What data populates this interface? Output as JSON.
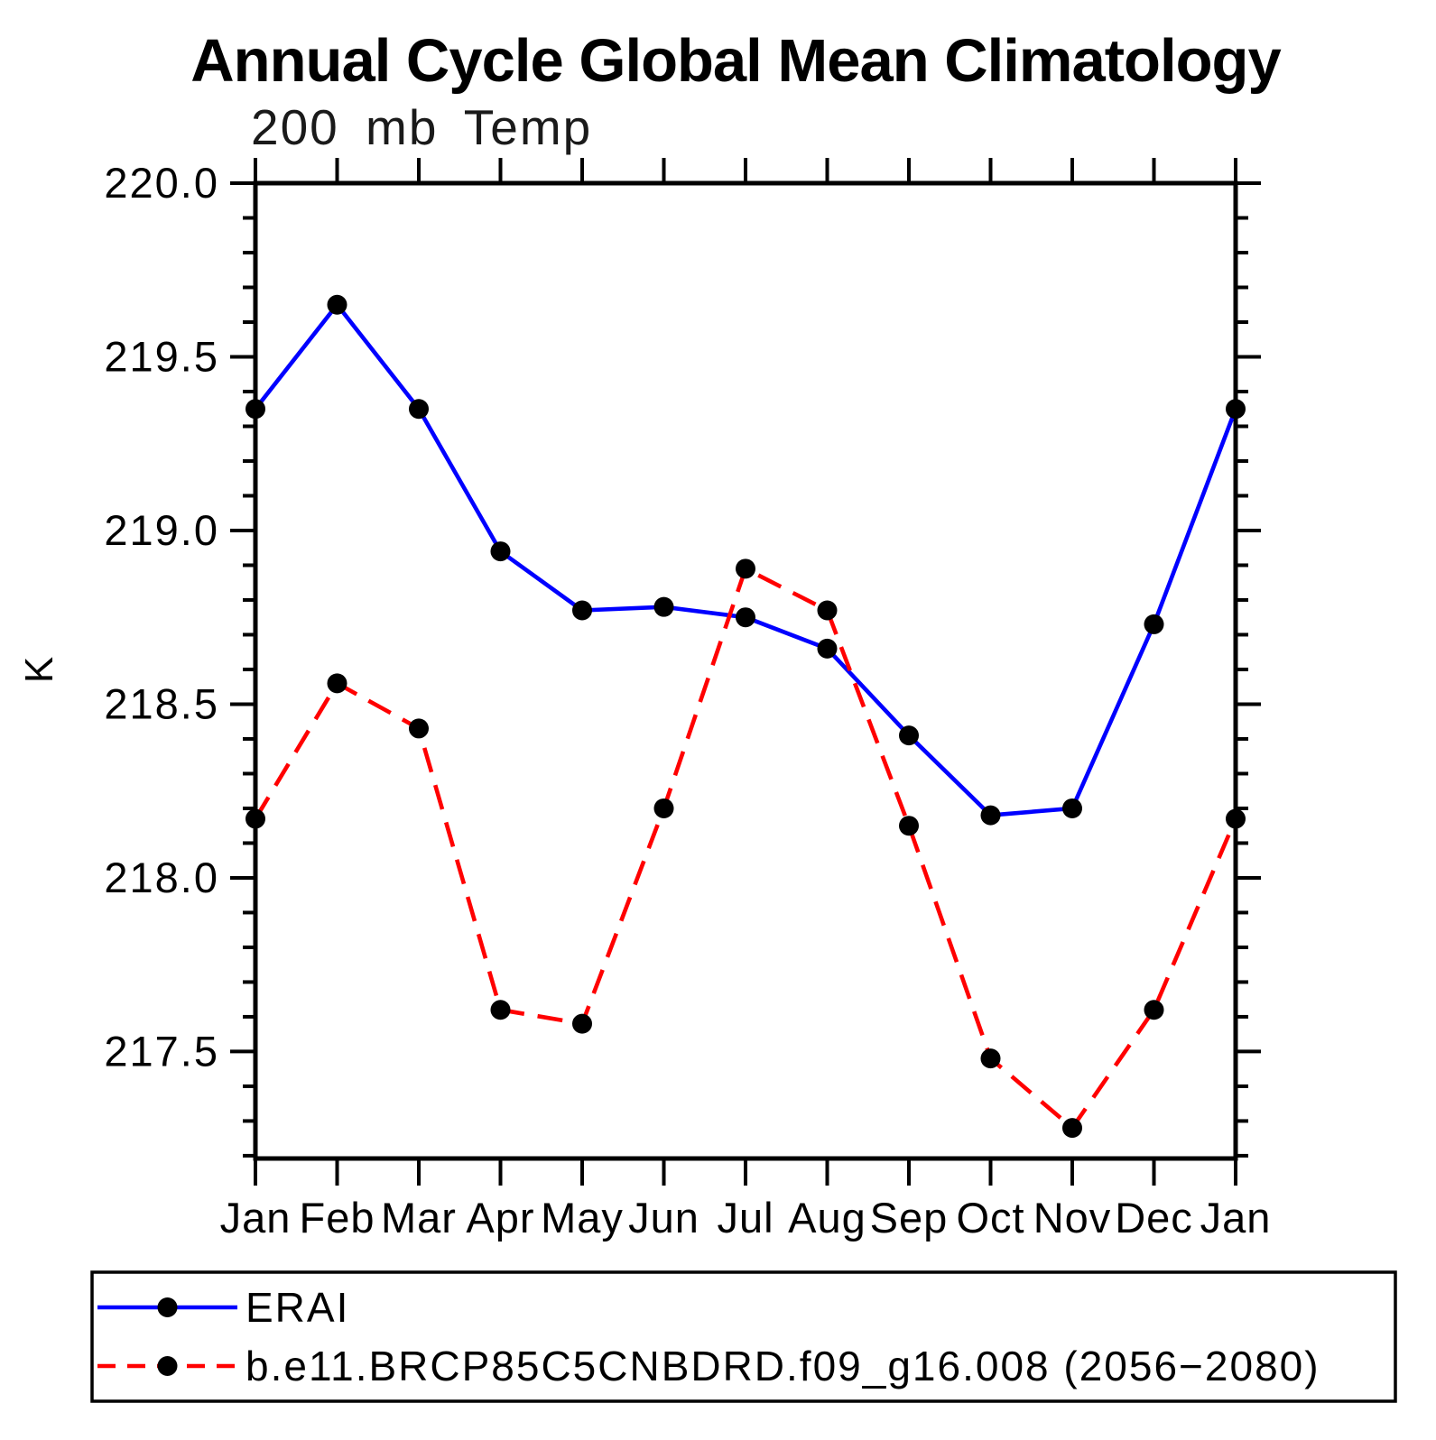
{
  "chart_data": {
    "type": "line",
    "title": "Annual Cycle Global Mean Climatology",
    "subtitle": "200 mb Temp",
    "xlabel": "",
    "ylabel": "K",
    "categories": [
      "Jan",
      "Feb",
      "Mar",
      "Apr",
      "May",
      "Jun",
      "Jul",
      "Aug",
      "Sep",
      "Oct",
      "Nov",
      "Dec",
      "Jan"
    ],
    "ylim": [
      217.192,
      220.0
    ],
    "ytick_major_values": [
      217.5,
      218.0,
      218.5,
      219.0,
      219.5,
      220.0
    ],
    "ytick_major_labels": [
      "217.5",
      "218.0",
      "218.5",
      "219.0",
      "219.5",
      "220.0"
    ],
    "ytick_minor_step": 0.1,
    "grid": false,
    "frame": "box",
    "marker_color": "#000000",
    "axis_color": "#000000",
    "series": [
      {
        "name": "ERAI",
        "color": "#0000ff",
        "line_style": "solid",
        "marker": "circle",
        "values": [
          219.35,
          219.65,
          219.35,
          218.94,
          218.77,
          218.78,
          218.75,
          218.66,
          218.41,
          218.18,
          218.2,
          218.73,
          219.35
        ]
      },
      {
        "name": "b.e11.BRCP85C5CNBDRD.f09_g16.008 (2056−2080)",
        "color": "#ff0000",
        "line_style": "dashed",
        "marker": "circle",
        "values": [
          218.17,
          218.56,
          218.43,
          217.62,
          217.58,
          218.2,
          218.89,
          218.77,
          218.15,
          217.48,
          217.28,
          217.62,
          218.17
        ]
      }
    ],
    "legend": {
      "position": "bottom",
      "entries": [
        "ERAI",
        "b.e11.BRCP85C5CNBDRD.f09_g16.008 (2056−2080)"
      ]
    }
  }
}
